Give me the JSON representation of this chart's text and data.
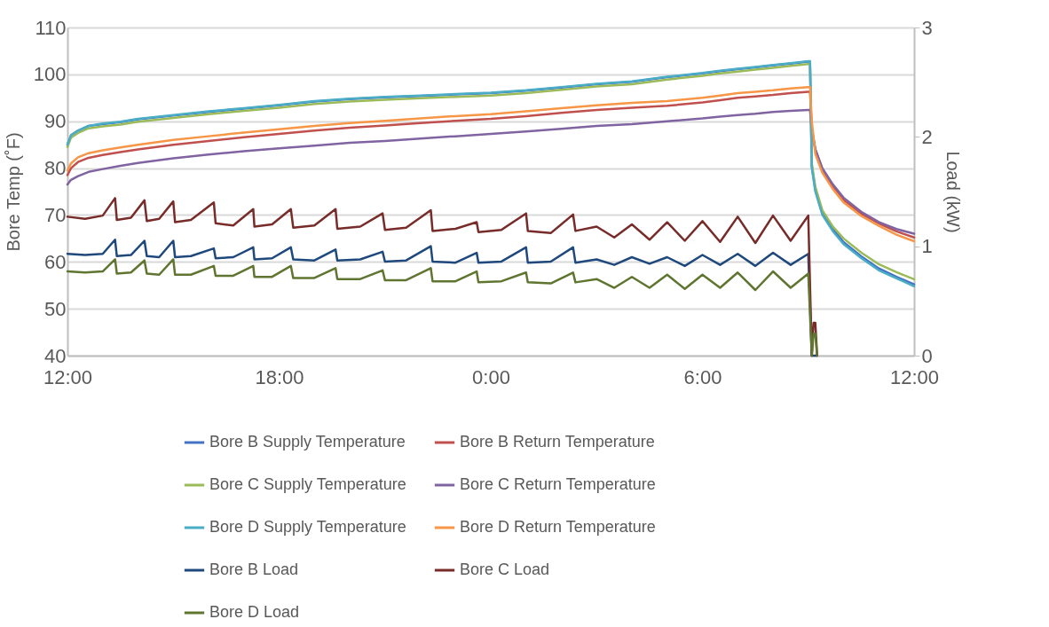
{
  "chart_data": {
    "type": "line",
    "ylabel": "Bore Temp (˚F)",
    "y2label": "Load (kW)",
    "x": [
      "--01-01T12:00",
      "--01-01T12:06",
      "--01-01T12:18",
      "--01-01T12:36",
      "--01-01T13:00",
      "--01-01T13:30",
      "--01-01T14:00",
      "--01-01T15:00",
      "--01-01T16:00",
      "--01-01T17:00",
      "--01-01T18:00",
      "--01-01T19:00",
      "--01-01T20:00",
      "--01-01T21:00",
      "--01-01T22:00",
      "--01-01T23:00",
      "--01-02T00:00",
      "--01-02T01:00",
      "--01-02T02:00",
      "--01-02T03:00",
      "--01-02T04:00",
      "--01-02T05:00",
      "--01-02T06:00",
      "--01-02T06:30",
      "--01-02T07:00",
      "--01-02T07:30",
      "--01-02T08:00",
      "--01-02T08:30",
      "--01-02T09:00",
      "--01-02T09:03",
      "--01-02T09:06",
      "--01-02T09:12",
      "--01-02T09:24",
      "--01-02T09:42",
      "--01-02T10:00",
      "--01-02T10:30",
      "--01-02T11:00",
      "--01-02T11:30",
      "--01-02T12:00"
    ],
    "xlim": [
      "--01-01T12:00",
      "--01-02T12:00"
    ],
    "xticks": [
      {
        "value": "--01-01T12:00",
        "label": "12:00"
      },
      {
        "value": "--01-01T18:00",
        "label": "18:00"
      },
      {
        "value": "--01-02T00:00",
        "label": "0:00"
      },
      {
        "value": "--01-02T06:00",
        "label": "6:00"
      },
      {
        "value": "--01-02T12:00",
        "label": "12:00"
      }
    ],
    "ylim": [
      40,
      110
    ],
    "yticks": [
      40,
      50,
      60,
      70,
      80,
      90,
      100,
      110
    ],
    "y2lim": [
      0,
      3
    ],
    "y2ticks": [
      0,
      1,
      2,
      3
    ],
    "grid": "y",
    "legend": "bottom",
    "series": [
      {
        "name": "Bore B Supply Temperature",
        "color": "#4472c4",
        "values": [
          85,
          87,
          88,
          89,
          89.4,
          89.8,
          90.4,
          91.2,
          92,
          92.7,
          93.4,
          94.2,
          94.7,
          95.1,
          95.4,
          95.7,
          96,
          96.5,
          97.2,
          97.9,
          98.4,
          99.4,
          100.2,
          100.7,
          101.1,
          101.5,
          101.9,
          102.3,
          102.7,
          102.7,
          80.5,
          75.5,
          70.5,
          67,
          64.2,
          61.2,
          58.6,
          56.8,
          55.2
        ]
      },
      {
        "name": "Bore B Return Temperature",
        "color": "#c0504d",
        "values": [
          78.5,
          80,
          81.3,
          82.2,
          82.8,
          83.4,
          84,
          85,
          85.8,
          86.6,
          87.3,
          88,
          88.6,
          89.1,
          89.6,
          90.1,
          90.5,
          91.1,
          91.8,
          92.4,
          92.9,
          93.3,
          94,
          94.5,
          95,
          95.3,
          95.6,
          96,
          96.3,
          96.3,
          88.5,
          84,
          79.7,
          76,
          73.2,
          70.3,
          68.2,
          66.5,
          65.2
        ]
      },
      {
        "name": "Bore C Supply Temperature",
        "color": "#9bbb59",
        "values": [
          84.5,
          86.5,
          87.5,
          88.5,
          88.9,
          89.3,
          89.9,
          90.7,
          91.5,
          92.2,
          92.9,
          93.7,
          94.2,
          94.6,
          94.9,
          95.2,
          95.5,
          96,
          96.7,
          97.4,
          97.9,
          98.9,
          99.7,
          100.2,
          100.6,
          101,
          101.4,
          101.8,
          102.2,
          102.2,
          81,
          76,
          71,
          67.5,
          65,
          62,
          59.5,
          57.8,
          56.3
        ]
      },
      {
        "name": "Bore C Return Temperature",
        "color": "#8064a2",
        "values": [
          76.5,
          77.5,
          78.3,
          79.2,
          79.8,
          80.5,
          81.1,
          82.1,
          82.9,
          83.6,
          84.2,
          84.8,
          85.4,
          85.8,
          86.3,
          86.8,
          87.3,
          87.8,
          88.4,
          89,
          89.4,
          90,
          90.6,
          91,
          91.3,
          91.6,
          92,
          92.2,
          92.4,
          92.4,
          88,
          84,
          80,
          76.5,
          73.7,
          70.7,
          68.5,
          67,
          66
        ]
      },
      {
        "name": "Bore D Supply Temperature",
        "color": "#4bacc6",
        "values": [
          85,
          87,
          88,
          89,
          89.5,
          89.9,
          90.5,
          91.3,
          92.1,
          92.8,
          93.5,
          94.3,
          94.8,
          95.2,
          95.5,
          95.8,
          96.1,
          96.6,
          97.3,
          98,
          98.5,
          99.5,
          100.3,
          100.8,
          101.2,
          101.6,
          102,
          102.4,
          102.8,
          102.8,
          80,
          75,
          70,
          66.5,
          63.8,
          60.8,
          58.2,
          56.5,
          54.8
        ]
      },
      {
        "name": "Bore D Return Temperature",
        "color": "#f79646",
        "values": [
          79.5,
          81,
          82.3,
          83.2,
          83.8,
          84.4,
          85,
          86,
          86.8,
          87.6,
          88.3,
          89,
          89.6,
          90.1,
          90.6,
          91.1,
          91.5,
          92.1,
          92.8,
          93.4,
          93.9,
          94.3,
          95,
          95.5,
          96,
          96.3,
          96.6,
          97,
          97.3,
          97.3,
          90,
          83,
          79,
          75.5,
          72.7,
          69.8,
          67.7,
          65.8,
          64.4
        ]
      },
      {
        "name": "Bore B Load",
        "color": "#1f497d",
        "axis": "y2",
        "x": [
          "--01-01T12:00",
          "--01-01T12:30",
          "--01-01T13:00",
          "--01-01T13:21",
          "--01-01T13:24",
          "--01-01T13:48",
          "--01-01T14:11",
          "--01-01T14:15",
          "--01-01T14:36",
          "--01-01T15:00",
          "--01-01T15:03",
          "--01-01T15:30",
          "--01-01T16:09",
          "--01-01T16:12",
          "--01-01T16:42",
          "--01-01T17:16",
          "--01-01T17:18",
          "--01-01T17:48",
          "--01-01T18:20",
          "--01-01T18:24",
          "--01-01T19:00",
          "--01-01T19:36",
          "--01-01T19:39",
          "--01-01T20:18",
          "--01-01T20:56",
          "--01-01T21:00",
          "--01-01T21:36",
          "--01-01T22:18",
          "--01-01T22:21",
          "--01-01T23:00",
          "--01-01T23:36",
          "--01-01T23:39",
          "--01-02T00:18",
          "--01-02T01:00",
          "--01-02T01:03",
          "--01-02T01:42",
          "--01-02T02:20",
          "--01-02T02:24",
          "--01-02T03:00",
          "--01-02T03:30",
          "--01-02T04:00",
          "--01-02T04:30",
          "--01-02T05:00",
          "--01-02T05:30",
          "--01-02T06:00",
          "--01-02T06:30",
          "--01-02T07:00",
          "--01-02T07:30",
          "--01-02T08:00",
          "--01-02T08:30",
          "--01-02T09:00",
          "--01-02T09:06",
          "--01-02T09:09",
          "--01-02T09:12",
          "--01-02T09:15"
        ],
        "values": [
          0.93,
          0.92,
          0.93,
          1.06,
          0.91,
          0.92,
          1.05,
          0.91,
          0.9,
          1.05,
          0.9,
          0.91,
          0.98,
          0.89,
          0.9,
          0.99,
          0.88,
          0.89,
          0.99,
          0.88,
          0.87,
          0.97,
          0.87,
          0.88,
          0.95,
          0.86,
          0.87,
          1,
          0.86,
          0.85,
          0.94,
          0.85,
          0.86,
          0.99,
          0.85,
          0.86,
          0.99,
          0.85,
          0.88,
          0.83,
          0.9,
          0.84,
          0.9,
          0.82,
          0.92,
          0.83,
          0.93,
          0.82,
          0.94,
          0.83,
          0.93,
          0,
          0,
          0,
          0
        ]
      },
      {
        "name": "Bore C Load",
        "color": "#772c2a",
        "axis": "y2",
        "x": [
          "--01-01T12:00",
          "--01-01T12:30",
          "--01-01T13:00",
          "--01-01T13:21",
          "--01-01T13:24",
          "--01-01T13:48",
          "--01-01T14:11",
          "--01-01T14:15",
          "--01-01T14:36",
          "--01-01T15:00",
          "--01-01T15:03",
          "--01-01T15:30",
          "--01-01T16:09",
          "--01-01T16:12",
          "--01-01T16:42",
          "--01-01T17:16",
          "--01-01T17:18",
          "--01-01T17:48",
          "--01-01T18:20",
          "--01-01T18:24",
          "--01-01T19:00",
          "--01-01T19:36",
          "--01-01T19:39",
          "--01-01T20:18",
          "--01-01T20:56",
          "--01-01T21:00",
          "--01-01T21:36",
          "--01-01T22:18",
          "--01-01T22:21",
          "--01-01T23:00",
          "--01-01T23:36",
          "--01-01T23:39",
          "--01-02T00:18",
          "--01-02T01:00",
          "--01-02T01:03",
          "--01-02T01:42",
          "--01-02T02:20",
          "--01-02T02:24",
          "--01-02T03:00",
          "--01-02T03:30",
          "--01-02T04:00",
          "--01-02T04:30",
          "--01-02T05:00",
          "--01-02T05:30",
          "--01-02T06:00",
          "--01-02T06:30",
          "--01-02T07:00",
          "--01-02T07:30",
          "--01-02T08:00",
          "--01-02T08:30",
          "--01-02T09:00",
          "--01-02T09:06",
          "--01-02T09:09",
          "--01-02T09:12",
          "--01-02T09:15"
        ],
        "values": [
          1.27,
          1.25,
          1.28,
          1.44,
          1.24,
          1.26,
          1.42,
          1.23,
          1.25,
          1.41,
          1.22,
          1.24,
          1.4,
          1.21,
          1.19,
          1.34,
          1.18,
          1.2,
          1.34,
          1.17,
          1.19,
          1.34,
          1.16,
          1.18,
          1.3,
          1.15,
          1.17,
          1.33,
          1.14,
          1.16,
          1.22,
          1.13,
          1.15,
          1.3,
          1.14,
          1.12,
          1.29,
          1.14,
          1.18,
          1.08,
          1.2,
          1.06,
          1.22,
          1.05,
          1.23,
          1.04,
          1.27,
          1.03,
          1.28,
          1.05,
          1.28,
          0,
          0.3,
          0.3,
          0
        ]
      },
      {
        "name": "Bore D Load",
        "color": "#5f7530",
        "axis": "y2",
        "x": [
          "--01-01T12:00",
          "--01-01T12:30",
          "--01-01T13:00",
          "--01-01T13:21",
          "--01-01T13:24",
          "--01-01T13:48",
          "--01-01T14:11",
          "--01-01T14:15",
          "--01-01T14:36",
          "--01-01T15:00",
          "--01-01T15:03",
          "--01-01T15:30",
          "--01-01T16:09",
          "--01-01T16:12",
          "--01-01T16:42",
          "--01-01T17:16",
          "--01-01T17:18",
          "--01-01T17:48",
          "--01-01T18:20",
          "--01-01T18:24",
          "--01-01T19:00",
          "--01-01T19:36",
          "--01-01T19:39",
          "--01-01T20:18",
          "--01-01T20:56",
          "--01-01T21:00",
          "--01-01T21:36",
          "--01-01T22:18",
          "--01-01T22:21",
          "--01-01T23:00",
          "--01-01T23:36",
          "--01-01T23:39",
          "--01-02T00:18",
          "--01-02T01:00",
          "--01-02T01:03",
          "--01-02T01:42",
          "--01-02T02:20",
          "--01-02T02:24",
          "--01-02T03:00",
          "--01-02T03:30",
          "--01-02T04:00",
          "--01-02T04:30",
          "--01-02T05:00",
          "--01-02T05:30",
          "--01-02T06:00",
          "--01-02T06:30",
          "--01-02T07:00",
          "--01-02T07:30",
          "--01-02T08:00",
          "--01-02T08:30",
          "--01-02T09:00",
          "--01-02T09:06",
          "--01-02T09:09",
          "--01-02T09:12",
          "--01-02T09:15"
        ],
        "values": [
          0.77,
          0.76,
          0.77,
          0.88,
          0.75,
          0.76,
          0.87,
          0.75,
          0.74,
          0.88,
          0.74,
          0.74,
          0.82,
          0.73,
          0.73,
          0.82,
          0.72,
          0.72,
          0.82,
          0.71,
          0.71,
          0.8,
          0.7,
          0.7,
          0.78,
          0.69,
          0.69,
          0.8,
          0.68,
          0.68,
          0.77,
          0.67,
          0.68,
          0.76,
          0.67,
          0.66,
          0.76,
          0.67,
          0.7,
          0.62,
          0.72,
          0.62,
          0.74,
          0.61,
          0.74,
          0.62,
          0.76,
          0.6,
          0.77,
          0.62,
          0.75,
          0,
          0.2,
          0.2,
          0
        ]
      }
    ]
  }
}
